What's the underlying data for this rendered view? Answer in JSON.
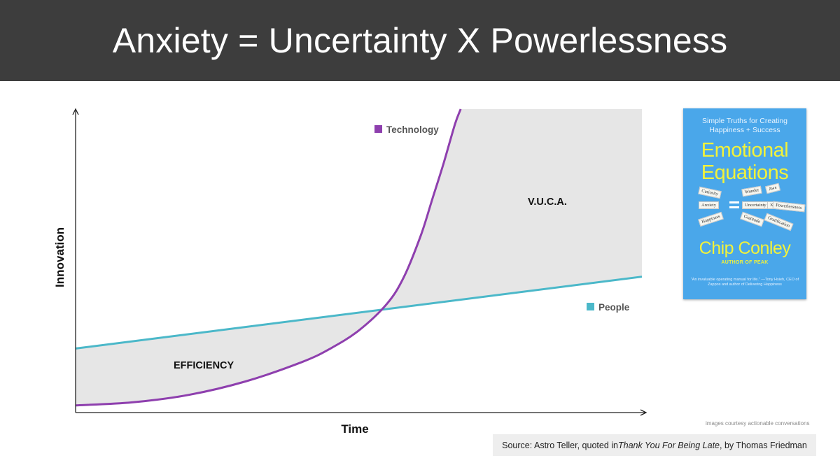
{
  "header": {
    "title": "Anxiety = Uncertainty X Powerlessness"
  },
  "chart_data": {
    "type": "line",
    "title": "",
    "xlabel": "Time",
    "ylabel": "Innovation",
    "xlim": [
      0,
      100
    ],
    "ylim": [
      0,
      100
    ],
    "series": [
      {
        "name": "Technology",
        "color": "#8e3fae",
        "x": [
          0,
          10,
          20,
          30,
          40,
          45,
          50,
          55,
          58,
          61,
          63,
          65,
          67,
          68
        ],
        "y": [
          1,
          2,
          4.5,
          9,
          15.5,
          20,
          26,
          35,
          44,
          58,
          70,
          82,
          95,
          100
        ]
      },
      {
        "name": "People",
        "color": "#4bb8c9",
        "x": [
          0,
          100
        ],
        "y": [
          20,
          44
        ]
      }
    ],
    "annotations": [
      {
        "text": "EFFICIENCY",
        "x": 17.5,
        "y": 15
      },
      {
        "text": "V.U.C.A.",
        "x": 80,
        "y": 70
      }
    ],
    "shading": "gray region between the two curves",
    "legend": "inline labels"
  },
  "book": {
    "tagline_line1": "Simple Truths for Creating",
    "tagline_line2": "Happiness + Success",
    "title_line1": "Emotional",
    "title_line2": "Equations",
    "equation_words": [
      "Curiosity",
      "Wonder",
      "Awe",
      "Anxiety",
      "Uncertainty",
      "X",
      "Powerlessness",
      "Happiness",
      "Gratitude",
      "Gratification"
    ],
    "author": "Chip Conley",
    "author_sub": "AUTHOR OF PEAK",
    "quote": "\"An invaluable operating manual for life.\" —Tony Hsieh, CEO of Zappos and author of Delivering Happiness"
  },
  "footer": {
    "courtesy": "images courtesy actionable conversations",
    "source_prefix": "Source: Astro Teller, quoted in ",
    "source_book": "Thank You For Being Late",
    "source_suffix": ", by Thomas Friedman"
  }
}
